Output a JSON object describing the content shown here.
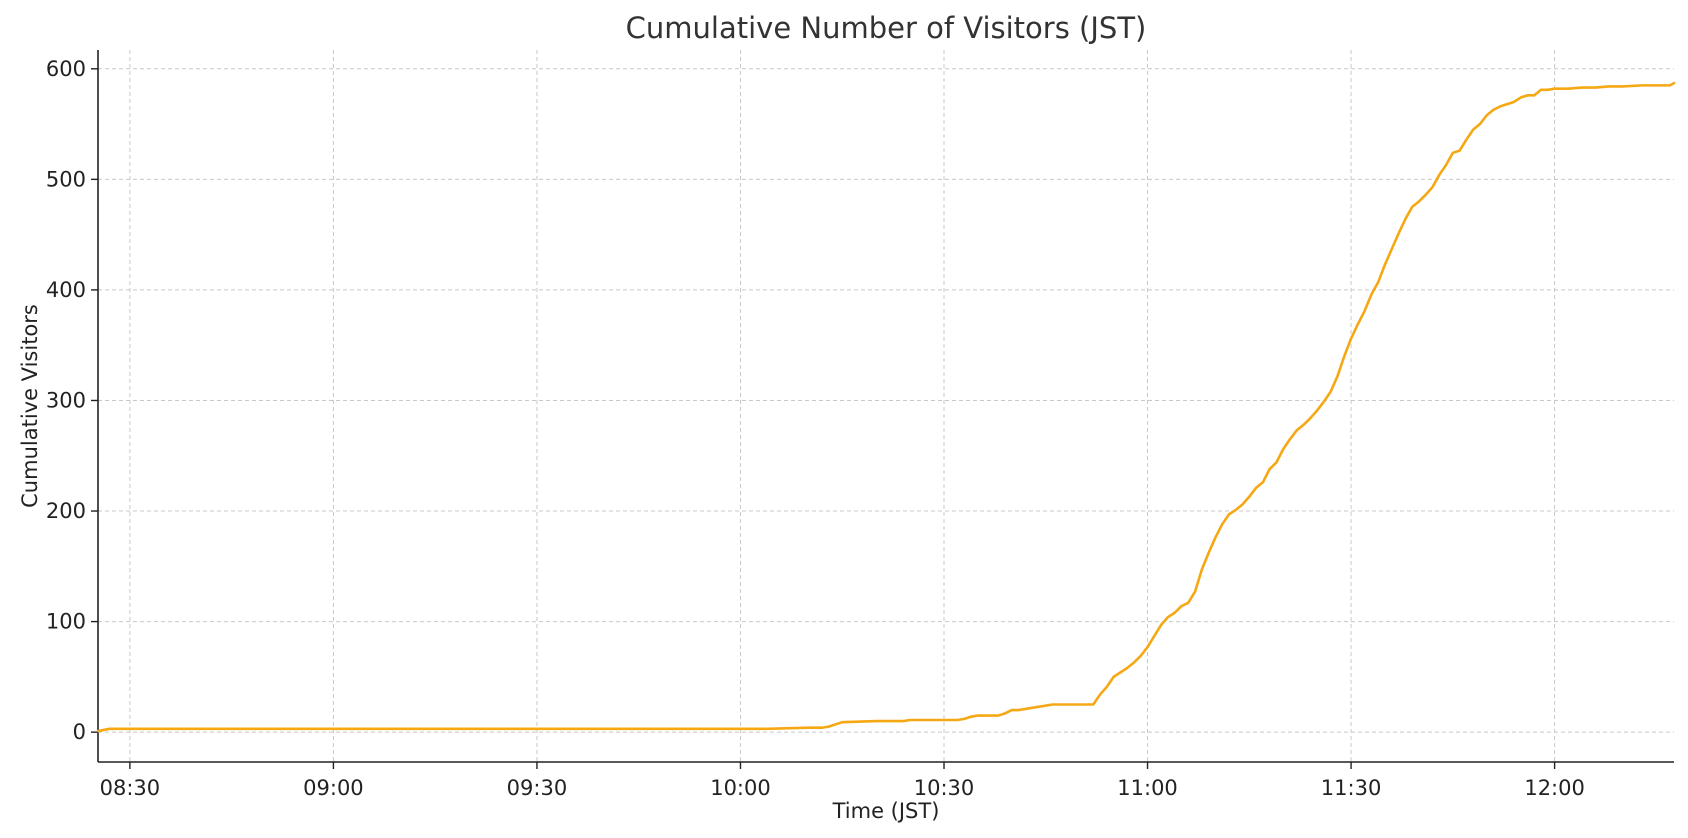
{
  "chart_data": {
    "type": "line",
    "title": "Cumulative Number of Visitors (JST)",
    "xlabel": "Time (JST)",
    "ylabel": "Cumulative Visitors",
    "x_tick_labels": [
      "08:30",
      "09:00",
      "09:30",
      "10:00",
      "10:30",
      "11:00",
      "11:30",
      "12:00"
    ],
    "x_ticks_min": [
      510,
      540,
      570,
      600,
      630,
      660,
      690,
      720
    ],
    "y_ticks": [
      0,
      100,
      200,
      300,
      400,
      500,
      600
    ],
    "xlim_min": [
      505.3,
      737.6
    ],
    "ylim": [
      -27,
      617
    ],
    "grid": true,
    "line_color": "#f5a813",
    "series": [
      {
        "x_min": [
          505.3,
          507,
          510,
          540,
          570,
          600,
          604,
          610,
          612,
          613,
          615,
          620,
          624,
          625,
          630,
          632,
          633,
          634,
          635,
          637,
          638,
          639,
          640,
          641,
          642,
          643,
          646,
          647,
          652,
          653,
          654,
          655,
          657,
          658,
          659,
          660,
          661,
          662,
          663,
          664,
          665,
          666,
          667,
          668,
          669,
          670,
          671,
          672,
          673,
          674,
          675,
          676,
          677,
          678,
          679,
          680,
          681,
          682,
          683,
          684,
          685,
          686,
          687,
          688,
          689,
          690,
          691,
          692,
          693,
          694,
          695,
          696,
          697,
          698,
          699,
          700,
          701,
          702,
          703,
          704,
          705,
          706,
          707,
          708,
          709,
          710,
          711,
          712,
          713,
          714,
          715,
          716,
          717,
          718,
          719,
          720,
          722,
          724,
          726,
          728,
          730,
          733,
          737,
          737.6
        ],
        "y": [
          1,
          3,
          3,
          3,
          3,
          3,
          3,
          4,
          4,
          5,
          9,
          10,
          10,
          11,
          11,
          11,
          12,
          14,
          15,
          15,
          15,
          17,
          20,
          20,
          21,
          22,
          25,
          25,
          25,
          34,
          41,
          50,
          58,
          63,
          69,
          77,
          87,
          97,
          104,
          108,
          114,
          117,
          127,
          147,
          162,
          176,
          188,
          197,
          201,
          206,
          213,
          221,
          226,
          238,
          244,
          256,
          265,
          273,
          278,
          284,
          291,
          299,
          308,
          322,
          340,
          356,
          369,
          381,
          396,
          407,
          423,
          437,
          451,
          464,
          475,
          480,
          486,
          493,
          504,
          513,
          524,
          526,
          536,
          545,
          550,
          558,
          563,
          566,
          568,
          570,
          574,
          576,
          576,
          581,
          581,
          582,
          582,
          583,
          583,
          584,
          584,
          585,
          585,
          587
        ]
      }
    ]
  }
}
